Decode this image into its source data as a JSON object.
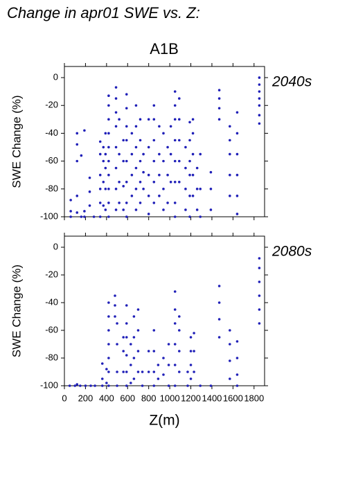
{
  "title": "Change in apr01 SWE vs. Z:",
  "subtitle": "A1B",
  "chart_data": [
    {
      "type": "scatter",
      "label": "2040s",
      "ylabel": "SWE Change (%)",
      "color": "#2020b8",
      "xlim": [
        0,
        1900
      ],
      "ylim": [
        -100,
        8
      ],
      "xticks": [
        0,
        200,
        400,
        600,
        800,
        1000,
        1200,
        1400,
        1600,
        1800
      ],
      "yticks": [
        0,
        -20,
        -40,
        -60,
        -80,
        -100
      ],
      "show_xtick_labels": false,
      "x": [
        60,
        60,
        60,
        120,
        120,
        120,
        120,
        120,
        160,
        160,
        190,
        190,
        190,
        240,
        240,
        240,
        280,
        340,
        340,
        340,
        340,
        340,
        340,
        370,
        370,
        370,
        370,
        390,
        390,
        390,
        390,
        390,
        420,
        420,
        420,
        420,
        420,
        420,
        420,
        420,
        420,
        420,
        490,
        490,
        490,
        490,
        490,
        490,
        490,
        490,
        520,
        520,
        520,
        520,
        560,
        560,
        560,
        560,
        590,
        590,
        590,
        590,
        590,
        590,
        590,
        590,
        640,
        640,
        640,
        640,
        680,
        680,
        680,
        680,
        680,
        680,
        720,
        720,
        720,
        720,
        720,
        750,
        750,
        750,
        800,
        800,
        800,
        800,
        800,
        850,
        850,
        850,
        850,
        850,
        850,
        900,
        900,
        900,
        900,
        940,
        940,
        940,
        940,
        980,
        980,
        980,
        1010,
        1010,
        1010,
        1050,
        1050,
        1050,
        1050,
        1050,
        1050,
        1050,
        1050,
        1090,
        1090,
        1090,
        1090,
        1090,
        1150,
        1150,
        1150,
        1150,
        1190,
        1190,
        1190,
        1190,
        1190,
        1190,
        1220,
        1220,
        1220,
        1220,
        1220,
        1260,
        1260,
        1260,
        1290,
        1290,
        1290,
        1390,
        1390,
        1390,
        1470,
        1470,
        1470,
        1470,
        1570,
        1570,
        1570,
        1570,
        1570,
        1640,
        1640,
        1640,
        1640,
        1640,
        1640,
        1850,
        1850,
        1850,
        1850,
        1850,
        1850,
        1850
      ],
      "values": [
        -88,
        -96,
        -100,
        -40,
        -48,
        -60,
        -85,
        -97,
        -56,
        -100,
        -38,
        -96,
        -100,
        -72,
        -82,
        -92,
        -100,
        -46,
        -55,
        -70,
        -80,
        -90,
        -100,
        -50,
        -60,
        -75,
        -92,
        -40,
        -55,
        -65,
        -80,
        -95,
        -13,
        -20,
        -30,
        -40,
        -50,
        -60,
        -70,
        -80,
        -90,
        -100,
        -7,
        -15,
        -25,
        -35,
        -50,
        -65,
        -80,
        -95,
        -30,
        -55,
        -75,
        -90,
        -45,
        -60,
        -78,
        -95,
        -12,
        -22,
        -35,
        -45,
        -60,
        -75,
        -90,
        -100,
        -40,
        -55,
        -70,
        -85,
        -20,
        -35,
        -50,
        -65,
        -80,
        -95,
        -30,
        -45,
        -60,
        -75,
        -90,
        -55,
        -68,
        -80,
        -30,
        -50,
        -70,
        -85,
        -98,
        -20,
        -30,
        -45,
        -60,
        -75,
        -90,
        -35,
        -55,
        -70,
        -85,
        -40,
        -60,
        -80,
        -95,
        -50,
        -70,
        -90,
        -35,
        -55,
        -75,
        -10,
        -20,
        -30,
        -45,
        -60,
        -75,
        -90,
        -100,
        -15,
        -30,
        -45,
        -60,
        -75,
        -50,
        -65,
        -80,
        -95,
        -32,
        -45,
        -60,
        -70,
        -85,
        -100,
        -30,
        -40,
        -55,
        -70,
        -85,
        -65,
        -80,
        -95,
        -55,
        -80,
        -100,
        -68,
        -80,
        -95,
        -9,
        -15,
        -22,
        -30,
        -35,
        -45,
        -55,
        -70,
        -85,
        -25,
        -40,
        -55,
        -70,
        -85,
        -98,
        0,
        -5,
        -10,
        -15,
        -20,
        -27,
        -33
      ]
    },
    {
      "type": "scatter",
      "label": "2080s",
      "ylabel": "SWE Change (%)",
      "xlabel": "Z(m)",
      "color": "#2020b8",
      "xlim": [
        0,
        1900
      ],
      "ylim": [
        -100,
        8
      ],
      "xticks": [
        0,
        200,
        400,
        600,
        800,
        1000,
        1200,
        1400,
        1600,
        1800
      ],
      "yticks": [
        0,
        -20,
        -40,
        -60,
        -80,
        -100
      ],
      "show_xtick_labels": true,
      "x": [
        50,
        100,
        120,
        150,
        200,
        250,
        290,
        360,
        360,
        360,
        400,
        400,
        420,
        420,
        420,
        420,
        420,
        420,
        420,
        480,
        480,
        480,
        500,
        500,
        500,
        500,
        560,
        560,
        560,
        590,
        590,
        590,
        590,
        590,
        590,
        630,
        630,
        630,
        660,
        660,
        660,
        660,
        700,
        700,
        700,
        700,
        740,
        740,
        800,
        800,
        850,
        850,
        850,
        850,
        890,
        890,
        940,
        940,
        990,
        990,
        990,
        1050,
        1050,
        1050,
        1050,
        1050,
        1050,
        1090,
        1090,
        1090,
        1090,
        1170,
        1170,
        1200,
        1200,
        1200,
        1200,
        1230,
        1230,
        1230,
        1290,
        1390,
        1470,
        1470,
        1470,
        1470,
        1570,
        1570,
        1570,
        1570,
        1640,
        1640,
        1640,
        1640,
        1850,
        1850,
        1850,
        1850,
        1850,
        1850
      ],
      "values": [
        -100,
        -100,
        -99,
        -100,
        -100,
        -100,
        -100,
        -84,
        -95,
        -100,
        -88,
        -98,
        -40,
        -50,
        -60,
        -70,
        -80,
        -90,
        -100,
        -35,
        -42,
        -50,
        -55,
        -70,
        -90,
        -100,
        -65,
        -75,
        -90,
        -42,
        -55,
        -65,
        -78,
        -90,
        -100,
        -70,
        -85,
        -98,
        -50,
        -65,
        -80,
        -95,
        -45,
        -60,
        -75,
        -90,
        -90,
        -100,
        -75,
        -90,
        -60,
        -75,
        -90,
        -100,
        -85,
        -95,
        -80,
        -92,
        -70,
        -85,
        -100,
        -32,
        -45,
        -55,
        -70,
        -85,
        -100,
        -50,
        -60,
        -75,
        -90,
        -90,
        -100,
        -65,
        -75,
        -85,
        -95,
        -62,
        -75,
        -90,
        -100,
        -100,
        -28,
        -40,
        -52,
        -65,
        -60,
        -70,
        -82,
        -95,
        -68,
        -80,
        -92,
        -100,
        -8,
        -15,
        -25,
        -35,
        -45,
        -55
      ]
    }
  ]
}
